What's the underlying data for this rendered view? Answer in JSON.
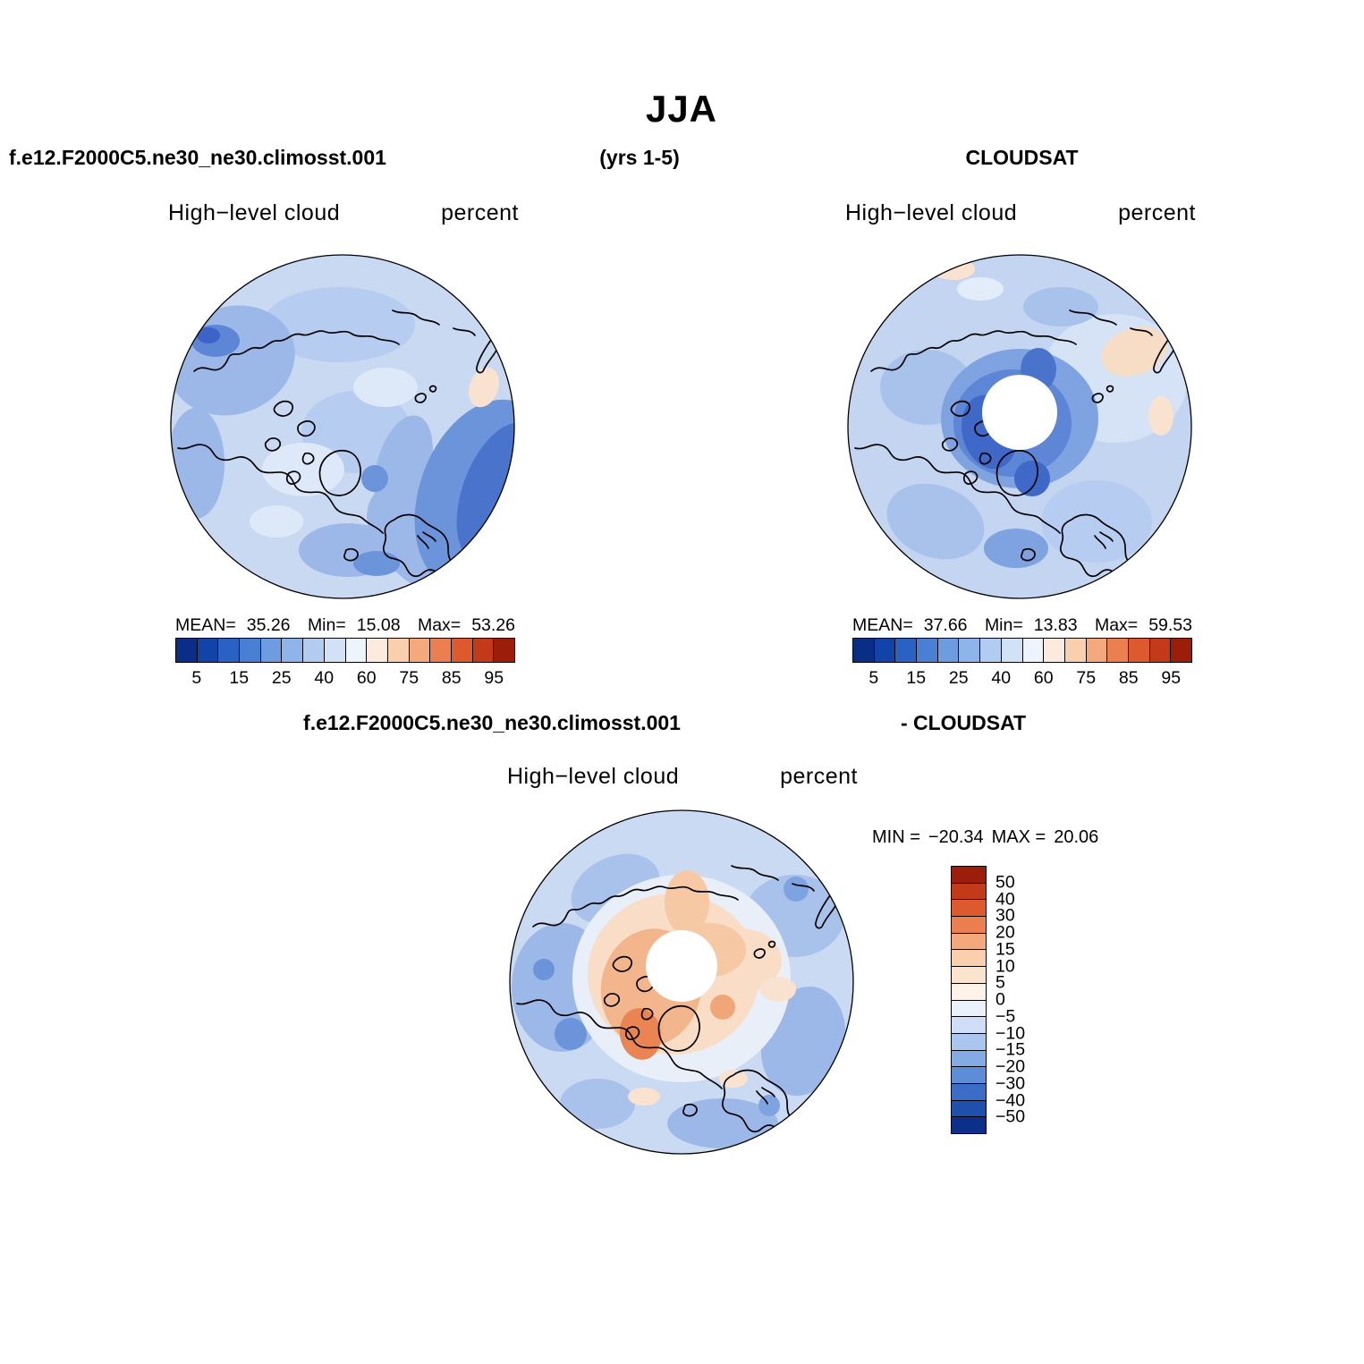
{
  "header": {
    "season": "JJA"
  },
  "model_panel": {
    "title": "f.e12.F2000C5.ne30_ne30.climosst.001",
    "years": "(yrs 1-5)",
    "field": "High−level cloud",
    "units": "percent",
    "mean_label": "MEAN=",
    "mean": "35.26",
    "min_label": "Min=",
    "min": "15.08",
    "max_label": "Max=",
    "max": "53.26"
  },
  "obs_panel": {
    "title": "CLOUDSAT",
    "field": "High−level cloud",
    "units": "percent",
    "mean_label": "MEAN=",
    "mean": "37.66",
    "min_label": "Min=",
    "min": "13.83",
    "max_label": "Max=",
    "max": "59.53"
  },
  "diff_panel": {
    "title_model": "f.e12.F2000C5.ne30_ne30.climosst.001",
    "title_obs": "- CLOUDSAT",
    "field": "High−level cloud",
    "units": "percent",
    "min_label": "MIN =",
    "min": "−20.34",
    "max_label": "MAX =",
    "max": "20.06"
  },
  "percent_colorbar": {
    "ticks": [
      "5",
      "15",
      "25",
      "40",
      "60",
      "75",
      "85",
      "95"
    ],
    "colors": [
      "#0a2d85",
      "#1243a8",
      "#2a62c4",
      "#4a80d4",
      "#6d9ce0",
      "#8fb4ea",
      "#b2cbf1",
      "#d3e1f7",
      "#eef4fb",
      "#fbeadd",
      "#f9cfae",
      "#f4a97c",
      "#ec7f4f",
      "#dd5a2e",
      "#c23a17",
      "#9c1e0a"
    ]
  },
  "diff_colorbar": {
    "labels": [
      "50",
      "40",
      "30",
      "20",
      "15",
      "10",
      "5",
      "0",
      "−5",
      "−10",
      "−15",
      "−20",
      "−30",
      "−40",
      "−50"
    ],
    "colors": [
      "#9c1e0a",
      "#c23a17",
      "#dd5a2e",
      "#ec7f4f",
      "#f4a97c",
      "#f9cfae",
      "#fbe4cd",
      "#fdf3e8",
      "#eaf1fa",
      "#cfdef6",
      "#aac6ee",
      "#84abe4",
      "#5e8dd8",
      "#3a6cc8",
      "#2050ae",
      "#0c2f8a"
    ]
  },
  "chart_data": [
    {
      "type": "heatmap",
      "panel": "top-left",
      "title": "f.e12.F2000C5.ne30_ne30.climosst.001 (yrs 1-5)",
      "season": "JJA",
      "variable": "High-level cloud",
      "units": "percent",
      "projection": "north polar stereographic",
      "stats": {
        "mean": 35.26,
        "min": 15.08,
        "max": 53.26
      },
      "contour_levels": [
        5,
        10,
        15,
        20,
        25,
        30,
        40,
        50,
        60,
        70,
        75,
        80,
        85,
        90,
        95
      ],
      "labeled_ticks": [
        5,
        15,
        25,
        40,
        60,
        75,
        85,
        95
      ],
      "palette_ref": "percent_colorbar",
      "legend_position": "below",
      "grid": false
    },
    {
      "type": "heatmap",
      "panel": "top-right",
      "title": "CLOUDSAT",
      "season": "JJA",
      "variable": "High-level cloud",
      "units": "percent",
      "projection": "north polar stereographic",
      "stats": {
        "mean": 37.66,
        "min": 13.83,
        "max": 59.53
      },
      "contour_levels": [
        5,
        10,
        15,
        20,
        25,
        30,
        40,
        50,
        60,
        70,
        75,
        80,
        85,
        90,
        95
      ],
      "labeled_ticks": [
        5,
        15,
        25,
        40,
        60,
        75,
        85,
        95
      ],
      "palette_ref": "percent_colorbar",
      "legend_position": "below",
      "notes": "white disk at the pole indicates missing observational data",
      "grid": false
    },
    {
      "type": "heatmap",
      "panel": "bottom-center",
      "title": "f.e12.F2000C5.ne30_ne30.climosst.001 - CLOUDSAT",
      "season": "JJA",
      "variable": "High-level cloud difference (model minus obs)",
      "units": "percent",
      "projection": "north polar stereographic",
      "stats": {
        "min": -20.34,
        "max": 20.06
      },
      "contour_levels": [
        -50,
        -40,
        -30,
        -20,
        -15,
        -10,
        -5,
        0,
        5,
        10,
        15,
        20,
        30,
        40,
        50
      ],
      "palette_ref": "diff_colorbar",
      "legend_position": "right-vertical",
      "notes": "white disk at the pole indicates missing data",
      "grid": false
    }
  ]
}
